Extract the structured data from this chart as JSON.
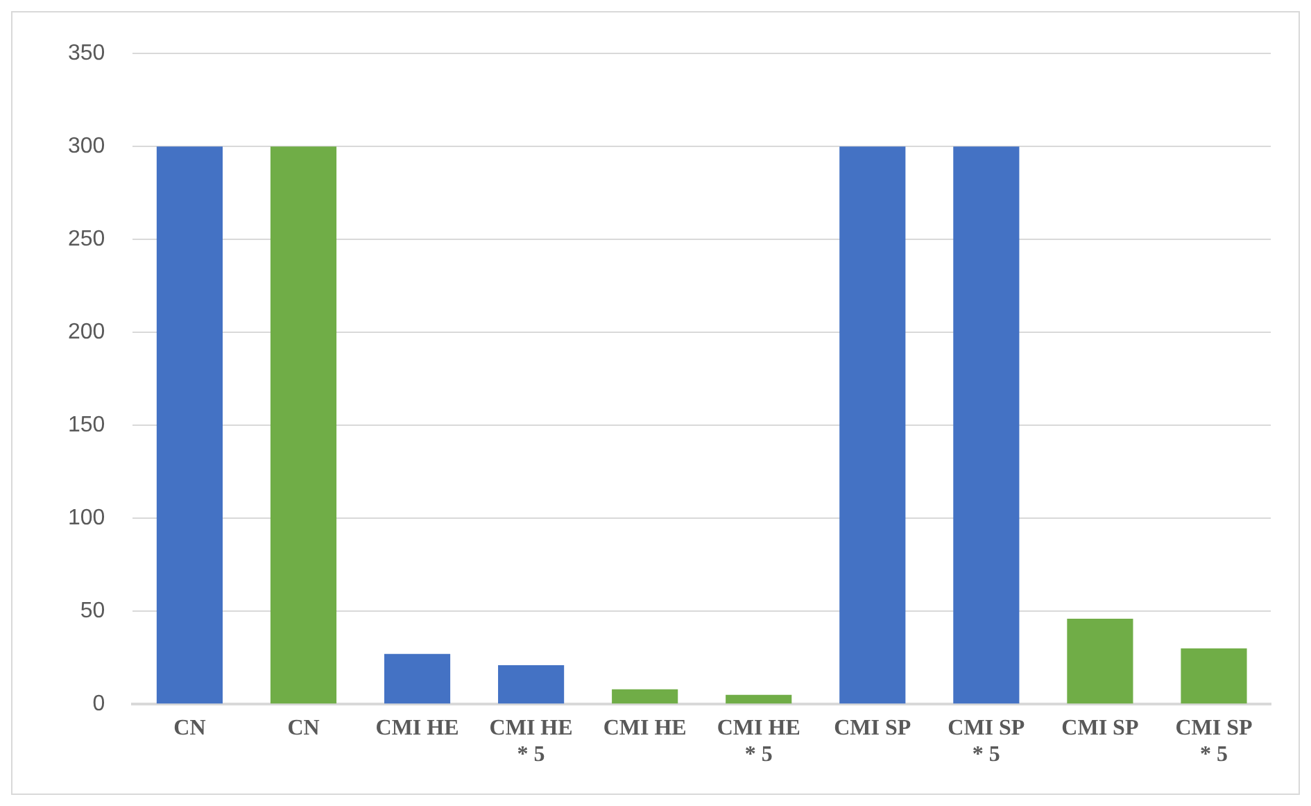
{
  "chart_data": {
    "type": "bar",
    "categories": [
      "CN",
      "CN",
      "CMI HE",
      "CMI HE\n* 5",
      "CMI HE",
      "CMI HE\n* 5",
      "CMI SP",
      "CMI SP\n* 5",
      "CMI SP",
      "CMI SP\n* 5"
    ],
    "values": [
      300,
      300,
      27,
      21,
      8,
      5,
      300,
      300,
      46,
      30
    ],
    "colors": [
      "#4472c4",
      "#70ad47",
      "#4472c4",
      "#4472c4",
      "#70ad47",
      "#70ad47",
      "#4472c4",
      "#4472c4",
      "#70ad47",
      "#70ad47"
    ],
    "ylim": [
      0,
      350
    ],
    "yticks": [
      0,
      50,
      100,
      150,
      200,
      250,
      300,
      350
    ],
    "grid": "y",
    "legend": false
  }
}
